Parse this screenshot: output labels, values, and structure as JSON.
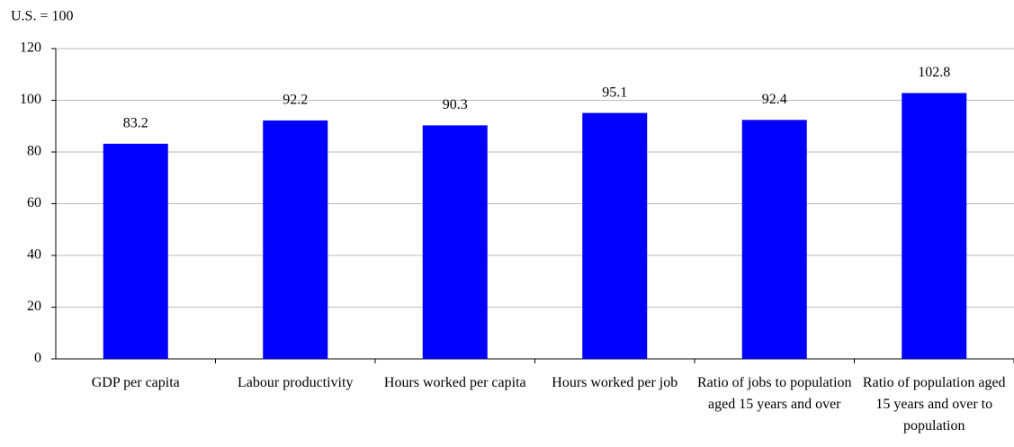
{
  "chart_data": {
    "type": "bar",
    "y_axis_title": "U.S. = 100",
    "categories": [
      "GDP per capita",
      "Labour productivity",
      "Hours worked per capita",
      "Hours worked per job",
      "Ratio of jobs to population aged 15 years and over",
      "Ratio of population aged 15 years and over to population"
    ],
    "values": [
      83.2,
      92.2,
      90.3,
      95.1,
      92.4,
      102.8
    ],
    "color": "#0000ff",
    "ylim": [
      0,
      120
    ],
    "yticks": [
      0,
      20,
      40,
      60,
      80,
      100,
      120
    ],
    "grid": true
  }
}
